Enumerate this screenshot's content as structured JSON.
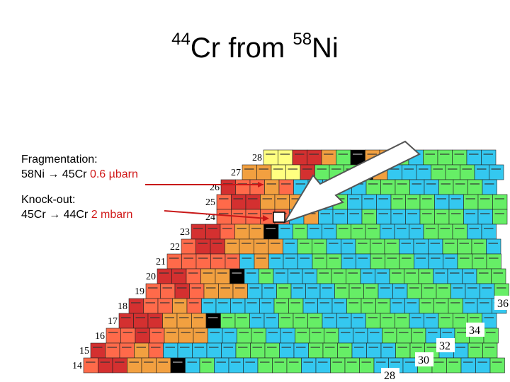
{
  "title": {
    "element": "Cr",
    "element_mass": "44",
    "from_word": "from",
    "source": "Ni",
    "source_mass": "58"
  },
  "notes": [
    {
      "heading": "Fragmentation:",
      "reaction": "58Ni  → 45Cr",
      "value": "0.6 µbarn"
    },
    {
      "heading": "Knock-out:",
      "reaction": "45Cr  → 44Cr",
      "value": "2 mbarn"
    }
  ],
  "chart": {
    "z_labels": [
      {
        "n": "28",
        "z": 28
      },
      {
        "n": "27",
        "z": 27
      },
      {
        "n": "26",
        "z": 26
      },
      {
        "n": "25",
        "z": 25
      },
      {
        "n": "24",
        "z": 24
      },
      {
        "n": "23",
        "z": 23
      },
      {
        "n": "22",
        "z": 22
      },
      {
        "n": "21",
        "z": 21
      },
      {
        "n": "20",
        "z": 20
      },
      {
        "n": "19",
        "z": 19
      },
      {
        "n": "18",
        "z": 18
      },
      {
        "n": "17",
        "z": 17
      },
      {
        "n": "16",
        "z": 16
      },
      {
        "n": "15",
        "z": 15
      },
      {
        "n": "14",
        "z": 14
      }
    ],
    "n_labels": [
      {
        "n": "36",
        "col": 36
      },
      {
        "n": "34",
        "col": 34
      },
      {
        "n": "32",
        "col": 32
      },
      {
        "n": "30",
        "col": 30
      },
      {
        "n": "28",
        "col": 28
      }
    ],
    "colors": {
      "stable": "#000000",
      "beta_minus": "#34c8f0",
      "beta_plus": "#ff6a4a",
      "ec": "#f2a040",
      "proton": "#ffff80",
      "alpha": "#66ee66",
      "red": "#d43030"
    }
  }
}
